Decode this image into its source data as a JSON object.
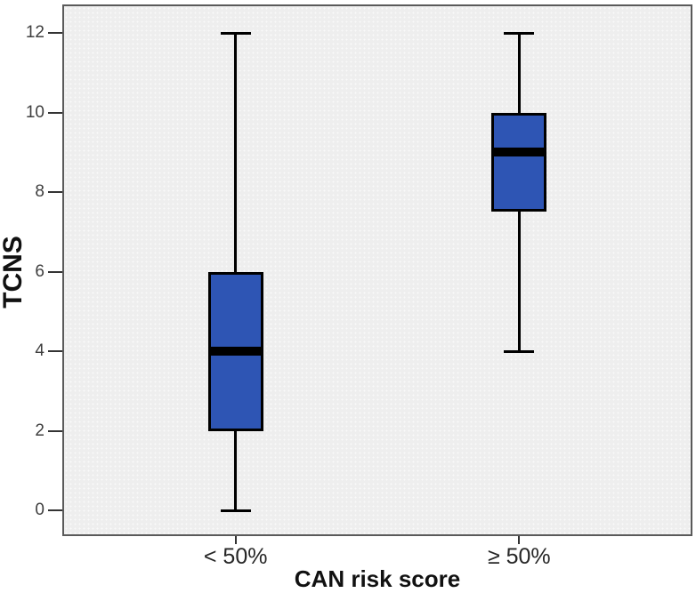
{
  "chart_data": {
    "type": "boxplot",
    "title": "",
    "xlabel": "CAN risk score",
    "ylabel": "TCNS",
    "ylim": [
      0,
      12
    ],
    "yticks": [
      0,
      2,
      4,
      6,
      8,
      10,
      12
    ],
    "categories": [
      "< 50%",
      "≥ 50%"
    ],
    "series": [
      {
        "category": "< 50%",
        "whisker_low": 0,
        "q1": 2,
        "median": 4,
        "q3": 6,
        "whisker_high": 12
      },
      {
        "category": "≥ 50%",
        "whisker_low": 4,
        "q1": 7.5,
        "median": 9,
        "q3": 10,
        "whisker_high": 12
      }
    ],
    "legend": null,
    "grid": false,
    "colors": {
      "box_fill": "#2e55b4",
      "box_border": "#000000",
      "median": "#000000",
      "whisker": "#000000",
      "plot_background": "#eeeeee",
      "frame_border": "#5a5a5a",
      "page_background": "#ffffff",
      "tick_label": "#3f3f3f",
      "axis_title": "#111111"
    }
  }
}
